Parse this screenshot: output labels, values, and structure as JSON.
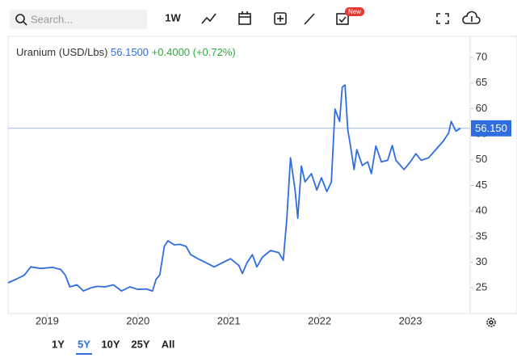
{
  "toolbar": {
    "search_placeholder": "Search...",
    "interval": "1W",
    "badge": "New"
  },
  "chart_data": {
    "type": "line",
    "legend_price": "56.1500",
    "legend_change": "+0.4000 (+0.72%)",
    "last_value": 56.15,
    "last_value_label": "56.150",
    "x": [
      2018.57,
      2018.66,
      2018.75,
      2018.82,
      2018.93,
      2019.06,
      2019.15,
      2019.2,
      2019.25,
      2019.33,
      2019.4,
      2019.48,
      2019.55,
      2019.64,
      2019.73,
      2019.82,
      2019.91,
      2020.0,
      2020.09,
      2020.16,
      2020.2,
      2020.24,
      2020.29,
      2020.33,
      2020.4,
      2020.46,
      2020.53,
      2020.58,
      2020.66,
      2020.75,
      2020.84,
      2020.93,
      2021.02,
      2021.11,
      2021.15,
      2021.2,
      2021.26,
      2021.31,
      2021.37,
      2021.46,
      2021.55,
      2021.6,
      2021.64,
      2021.68,
      2021.73,
      2021.76,
      2021.8,
      2021.84,
      2021.91,
      2021.97,
      2022.02,
      2022.08,
      2022.13,
      2022.17,
      2022.22,
      2022.25,
      2022.28,
      2022.31,
      2022.34,
      2022.38,
      2022.41,
      2022.47,
      2022.53,
      2022.57,
      2022.62,
      2022.68,
      2022.75,
      2022.8,
      2022.84,
      2022.93,
      2023.0,
      2023.06,
      2023.12,
      2023.2,
      2023.28,
      2023.36,
      2023.42,
      2023.45,
      2023.5,
      2023.55
    ],
    "series": [
      {
        "name": "Uranium (USD/Lbs)",
        "color": "#2f6de1",
        "values": [
          26.0,
          26.7,
          27.5,
          29.1,
          28.8,
          29.0,
          28.6,
          27.5,
          25.2,
          25.6,
          24.4,
          25.0,
          25.3,
          25.2,
          25.6,
          24.4,
          25.2,
          24.7,
          24.8,
          24.4,
          26.7,
          27.5,
          33.1,
          34.2,
          33.4,
          33.5,
          33.1,
          31.5,
          30.7,
          29.9,
          29.1,
          29.9,
          30.7,
          29.4,
          27.8,
          29.9,
          31.5,
          29.1,
          31.0,
          32.3,
          31.9,
          30.4,
          38.6,
          50.4,
          44.1,
          38.6,
          48.8,
          45.7,
          47.3,
          44.1,
          46.5,
          43.8,
          45.7,
          59.9,
          57.5,
          64.2,
          64.6,
          55.9,
          52.8,
          48.1,
          52.0,
          48.9,
          49.6,
          47.3,
          52.7,
          49.6,
          49.9,
          52.8,
          49.9,
          48.1,
          49.6,
          51.2,
          49.9,
          50.4,
          52.0,
          53.6,
          55.2,
          57.5,
          55.6,
          56.15
        ]
      }
    ],
    "xlim": [
      2018.57,
      2023.64
    ],
    "xticks": [
      2019,
      2020,
      2021,
      2022,
      2023
    ],
    "ylim": [
      20,
      74.1
    ],
    "yticks": [
      25,
      30,
      35,
      40,
      45,
      50,
      55,
      60,
      65,
      70
    ]
  },
  "range_buttons": [
    {
      "label": "1Y",
      "active": false
    },
    {
      "label": "5Y",
      "active": true
    },
    {
      "label": "10Y",
      "active": false
    },
    {
      "label": "25Y",
      "active": false
    },
    {
      "label": "All",
      "active": false
    }
  ]
}
